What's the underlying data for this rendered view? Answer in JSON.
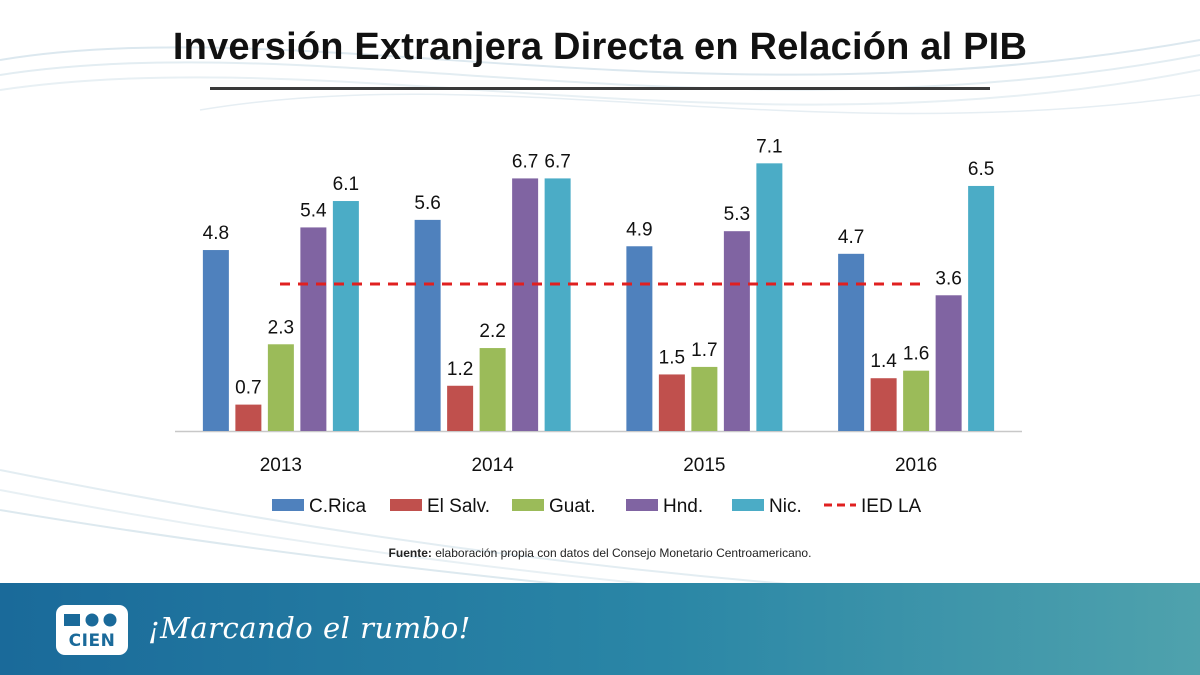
{
  "title": "Inversión Extranjera Directa en Relación al PIB",
  "source_prefix": "Fuente:",
  "source_text": "elaboración propia con datos del Consejo  Monetario Centroamericano.",
  "slogan": "¡Marcando el rumbo!",
  "logo_text": "CIEN",
  "colors": {
    "accent_line": "#e02020",
    "footer_blue": "#1a6a9a",
    "footer_teal": "#4fa2ad"
  },
  "chart_data": {
    "type": "bar",
    "title": "Inversión Extranjera Directa en Relación al PIB",
    "categories": [
      "2013",
      "2014",
      "2015",
      "2016"
    ],
    "series": [
      {
        "name": "C.Rica",
        "color": "#4f81bd",
        "values": [
          4.8,
          5.6,
          4.9,
          4.7
        ]
      },
      {
        "name": "El Salv.",
        "color": "#c0504d",
        "values": [
          0.7,
          1.2,
          1.5,
          1.4
        ]
      },
      {
        "name": "Guat.",
        "color": "#9bbb59",
        "values": [
          2.3,
          2.2,
          1.7,
          1.6
        ]
      },
      {
        "name": "Hnd.",
        "color": "#8064a2",
        "values": [
          5.4,
          6.7,
          5.3,
          3.6
        ]
      },
      {
        "name": "Nic.",
        "color": "#4bacc6",
        "values": [
          6.1,
          6.7,
          7.1,
          6.5
        ]
      }
    ],
    "reference_line": {
      "name": "IED LA",
      "value": 3.9,
      "color": "#e02020",
      "style": "dashed"
    },
    "ylim": [
      0,
      8
    ],
    "xlabel": "",
    "ylabel": "",
    "grid": false,
    "legend_position": "bottom"
  }
}
